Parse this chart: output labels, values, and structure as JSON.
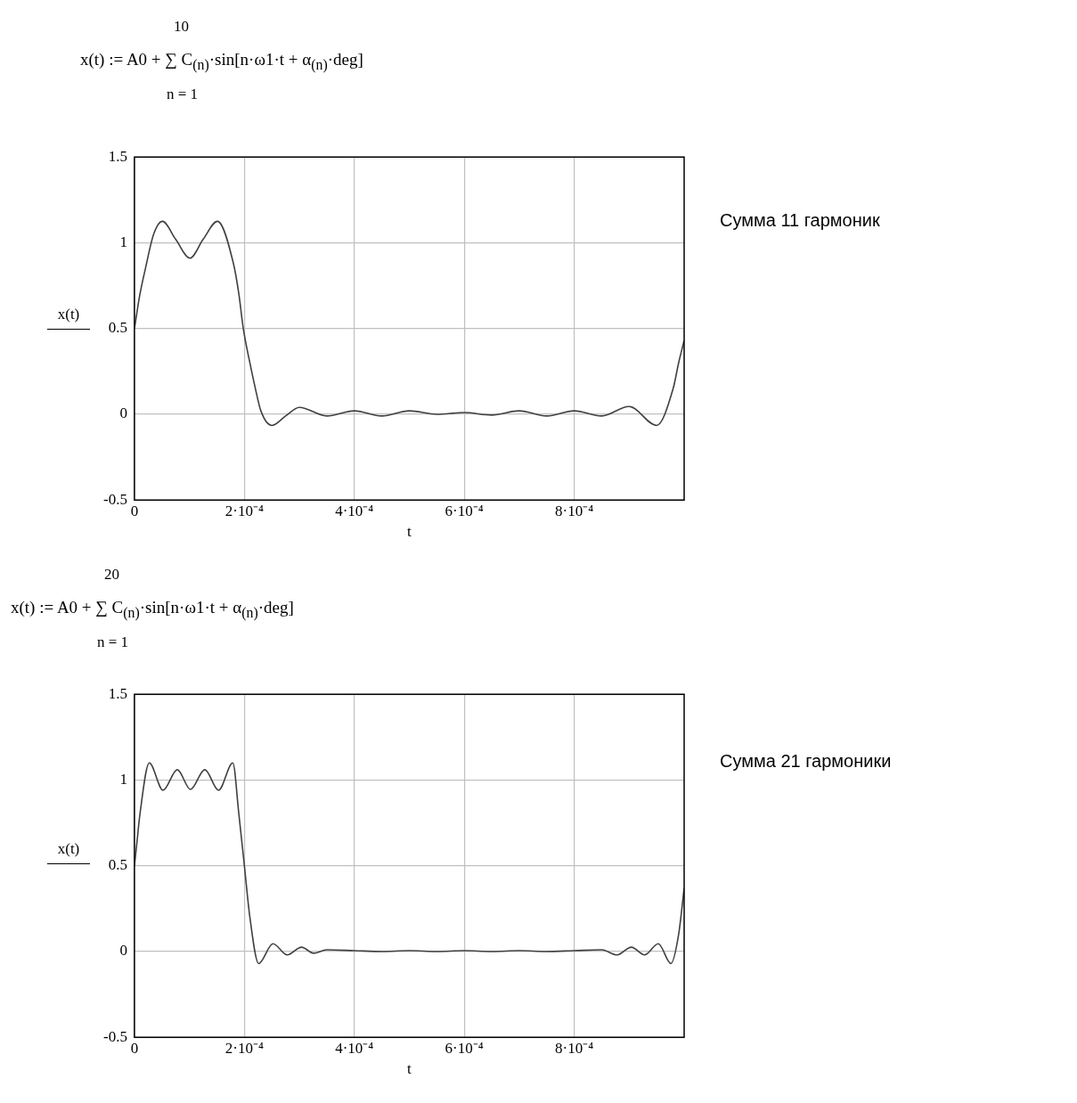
{
  "chart_data": [
    {
      "type": "line",
      "title": "x(t) := A0 + ∑ C$_{(n)}$·sin[n·ω1·t + α$_{(n)}$·deg]",
      "xlabel": "t",
      "ylabel": "x(t)",
      "annotations": [
        "10",
        "n = 1",
        "Сумма 11 гармоник"
      ],
      "xlim": [
        0,
        0.001
      ],
      "ylim": [
        -0.5,
        1.5
      ],
      "xticks": [
        0,
        {
          "value": 0.0002,
          "label": "2·10⁻⁴"
        },
        {
          "value": 0.0004,
          "label": "4·10⁻⁴"
        },
        {
          "value": 0.0006,
          "label": "6·10⁻⁴"
        },
        {
          "value": 0.0008,
          "label": "8·10⁻⁴"
        }
      ],
      "yticks": [
        -0.5,
        0,
        0.5,
        1,
        1.5
      ],
      "grid": true,
      "legend": false,
      "marker": "none",
      "line_style": "solid",
      "series": [
        {
          "color": "#404040",
          "x": [
            0,
            1e-05,
            2e-05,
            3.5e-05,
            5.1e-05,
            7.5e-05,
            0.000101,
            0.000125,
            0.000151,
            0.00018,
            0.00019,
            0.000198,
            0.00021,
            0.00022,
            0.00023,
            0.00025,
            0.000275,
            0.0003,
            0.00035,
            0.0004,
            0.00045,
            0.0005,
            0.00055,
            0.0006,
            0.00065,
            0.0007,
            0.00075,
            0.0008,
            0.00085,
            0.0009,
            0.00095,
            0.00098,
            0.00099,
            0.001
          ],
          "values": [
            0.5,
            0.7,
            0.85,
            1.05,
            1.125,
            1.02,
            0.91,
            1.02,
            1.125,
            0.88,
            0.7,
            0.5,
            0.3,
            0.15,
            0.02,
            -0.065,
            -0.01,
            0.04,
            -0.01,
            0.02,
            -0.01,
            0.02,
            0,
            0.01,
            -0.005,
            0.02,
            -0.01,
            0.02,
            -0.01,
            0.045,
            -0.065,
            0.15,
            0.3,
            0.43
          ]
        }
      ]
    },
    {
      "type": "line",
      "title": "x(t) := A0 + ∑ C$_{(n)}$·sin[n·ω1·t + α$_{(n)}$·deg]",
      "xlabel": "t",
      "ylabel": "x(t)",
      "annotations": [
        "20",
        "n = 1",
        "Сумма 21 гармоники"
      ],
      "xlim": [
        0,
        0.001
      ],
      "ylim": [
        -0.5,
        1.5
      ],
      "xticks": [
        0,
        {
          "value": 0.0002,
          "label": "2·10⁻⁴"
        },
        {
          "value": 0.0004,
          "label": "4·10⁻⁴"
        },
        {
          "value": 0.0006,
          "label": "6·10⁻⁴"
        },
        {
          "value": 0.0008,
          "label": "8·10⁻⁴"
        }
      ],
      "yticks": [
        -0.5,
        0,
        0.5,
        1,
        1.5
      ],
      "grid": true,
      "legend": false,
      "marker": "none",
      "line_style": "solid",
      "series": [
        {
          "color": "#404040",
          "x": [
            0,
            5e-06,
            1e-05,
            2.7e-05,
            5.2e-05,
            7.8e-05,
            0.000102,
            0.000128,
            0.000153,
            0.000179,
            0.00019,
            0.0002,
            0.00021,
            0.000226,
            0.000252,
            0.000278,
            0.000304,
            0.000326,
            0.00035,
            0.0004,
            0.00045,
            0.0005,
            0.00055,
            0.0006,
            0.00065,
            0.0007,
            0.00075,
            0.0008,
            0.00085,
            0.000878,
            0.000904,
            0.000928,
            0.000953,
            0.000976,
            0.00099,
            0.001
          ],
          "values": [
            0.5,
            0.65,
            0.8,
            1.1,
            0.94,
            1.06,
            0.945,
            1.06,
            0.94,
            1.1,
            0.8,
            0.5,
            0.2,
            -0.07,
            0.045,
            -0.02,
            0.025,
            -0.01,
            0.01,
            0.005,
            0,
            0.005,
            0,
            0.005,
            0,
            0.005,
            0,
            0.005,
            0.01,
            -0.02,
            0.025,
            -0.02,
            0.045,
            -0.07,
            0.1,
            0.37
          ]
        }
      ]
    }
  ]
}
